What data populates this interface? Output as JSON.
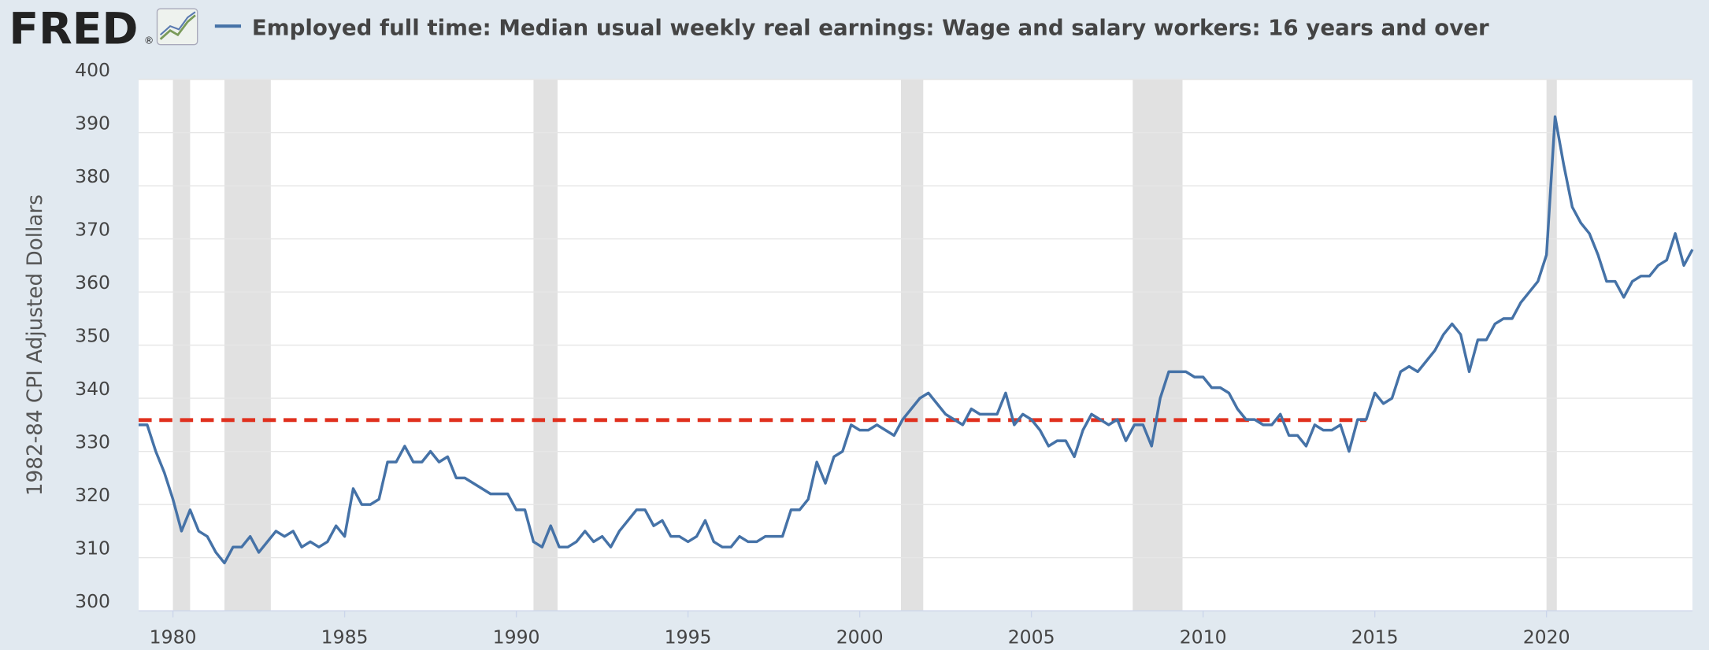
{
  "header": {
    "logo": "FRED",
    "logo_mark": "®"
  },
  "chart_data": {
    "type": "line",
    "y_label": "1982-84 CPI Adjusted Dollars",
    "xlim": [
      1979,
      2024.25
    ],
    "xticks": [
      1980,
      1985,
      1990,
      1995,
      2000,
      2005,
      2010,
      2015,
      2020
    ],
    "ylim": [
      300,
      400
    ],
    "yticks": [
      300,
      310,
      320,
      330,
      340,
      350,
      360,
      370,
      380,
      390,
      400
    ],
    "grid": true,
    "recession_color": "#e1e1e1",
    "recessions": [
      [
        1980,
        1980.5
      ],
      [
        1981.5,
        1982.85
      ],
      [
        1990.5,
        1991.2
      ],
      [
        2001.2,
        2001.85
      ],
      [
        2007.95,
        2009.4
      ],
      [
        2020,
        2020.3
      ]
    ],
    "reference_line": {
      "value": 335.9,
      "x": [
        1979,
        2014.75
      ],
      "color": "#e0301e"
    },
    "x": [
      1979,
      1979.25,
      1979.5,
      1979.75,
      1980,
      1980.25,
      1980.5,
      1980.75,
      1981,
      1981.25,
      1981.5,
      1981.75,
      1982,
      1982.25,
      1982.5,
      1982.75,
      1983,
      1983.25,
      1983.5,
      1983.75,
      1984,
      1984.25,
      1984.5,
      1984.75,
      1985,
      1985.25,
      1985.5,
      1985.75,
      1986,
      1986.25,
      1986.5,
      1986.75,
      1987,
      1987.25,
      1987.5,
      1987.75,
      1988,
      1988.25,
      1988.5,
      1988.75,
      1989,
      1989.25,
      1989.5,
      1989.75,
      1990,
      1990.25,
      1990.5,
      1990.75,
      1991,
      1991.25,
      1991.5,
      1991.75,
      1992,
      1992.25,
      1992.5,
      1992.75,
      1993,
      1993.25,
      1993.5,
      1993.75,
      1994,
      1994.25,
      1994.5,
      1994.75,
      1995,
      1995.25,
      1995.5,
      1995.75,
      1996,
      1996.25,
      1996.5,
      1996.75,
      1997,
      1997.25,
      1997.5,
      1997.75,
      1998,
      1998.25,
      1998.5,
      1998.75,
      1999,
      1999.25,
      1999.5,
      1999.75,
      2000,
      2000.25,
      2000.5,
      2000.75,
      2001,
      2001.25,
      2001.5,
      2001.75,
      2002,
      2002.25,
      2002.5,
      2002.75,
      2003,
      2003.25,
      2003.5,
      2003.75,
      2004,
      2004.25,
      2004.5,
      2004.75,
      2005,
      2005.25,
      2005.5,
      2005.75,
      2006,
      2006.25,
      2006.5,
      2006.75,
      2007,
      2007.25,
      2007.5,
      2007.75,
      2008,
      2008.25,
      2008.5,
      2008.75,
      2009,
      2009.25,
      2009.5,
      2009.75,
      2010,
      2010.25,
      2010.5,
      2010.75,
      2011,
      2011.25,
      2011.5,
      2011.75,
      2012,
      2012.25,
      2012.5,
      2012.75,
      2013,
      2013.25,
      2013.5,
      2013.75,
      2014,
      2014.25,
      2014.5,
      2014.75,
      2015,
      2015.25,
      2015.5,
      2015.75,
      2016,
      2016.25,
      2016.5,
      2016.75,
      2017,
      2017.25,
      2017.5,
      2017.75,
      2018,
      2018.25,
      2018.5,
      2018.75,
      2019,
      2019.25,
      2019.5,
      2019.75,
      2020,
      2020.25,
      2020.5,
      2020.75,
      2021,
      2021.25,
      2021.5,
      2021.75,
      2022,
      2022.25,
      2022.5,
      2022.75,
      2023,
      2023.25,
      2023.5,
      2023.75,
      2024,
      2024.25
    ],
    "series": [
      {
        "name": "Employed full time: Median usual weekly real earnings: Wage and salary workers: 16 years and over",
        "color": "#4572a7",
        "values": [
          335,
          335,
          330,
          326,
          321,
          315,
          319,
          315,
          314,
          311,
          309,
          312,
          312,
          314,
          311,
          313,
          315,
          314,
          315,
          312,
          313,
          312,
          313,
          316,
          314,
          323,
          320,
          320,
          321,
          328,
          328,
          331,
          328,
          328,
          330,
          328,
          329,
          325,
          325,
          324,
          323,
          322,
          322,
          322,
          319,
          319,
          313,
          312,
          316,
          312,
          312,
          313,
          315,
          313,
          314,
          312,
          315,
          317,
          319,
          319,
          316,
          317,
          314,
          314,
          313,
          314,
          317,
          313,
          312,
          312,
          314,
          313,
          313,
          314,
          314,
          314,
          319,
          319,
          321,
          328,
          324,
          329,
          330,
          335,
          334,
          334,
          335,
          334,
          333,
          336,
          338,
          340,
          341,
          339,
          337,
          336,
          335,
          338,
          337,
          337,
          337,
          341,
          335,
          337,
          336,
          334,
          331,
          332,
          332,
          329,
          334,
          337,
          336,
          335,
          336,
          332,
          335,
          335,
          331,
          340,
          345,
          345,
          345,
          344,
          344,
          342,
          342,
          341,
          338,
          336,
          336,
          335,
          335,
          337,
          333,
          333,
          331,
          335,
          334,
          334,
          335,
          330,
          336,
          336,
          341,
          339,
          340,
          345,
          346,
          345,
          347,
          349,
          352,
          354,
          352,
          345,
          351,
          351,
          354,
          355,
          355,
          358,
          360,
          362,
          367,
          393,
          384,
          376,
          373,
          371,
          367,
          362,
          362,
          359,
          362,
          363,
          363,
          365,
          366,
          371,
          365,
          368
        ]
      }
    ]
  }
}
